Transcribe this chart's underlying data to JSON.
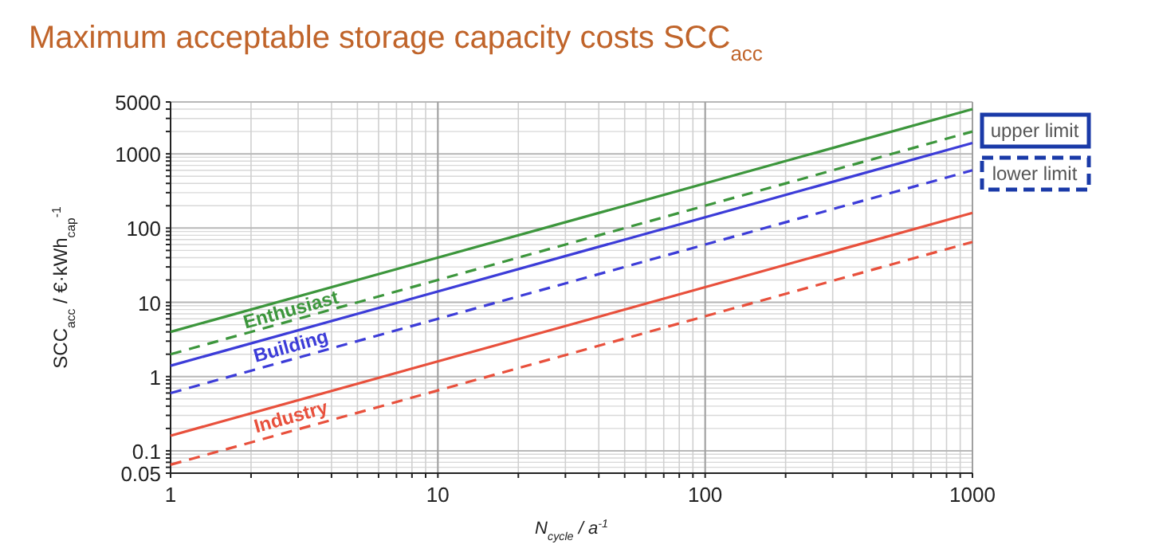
{
  "chart_data": {
    "type": "line",
    "title": "Maximum acceptable storage capacity costs SCC$_{acc}$",
    "xlabel": "N$_{cycle}$ / a$^{-1}$",
    "ylabel": "SCC$_{acc}$ / €·kWh$_{cap}$$^{-1}$",
    "x": [
      1,
      1000
    ],
    "log": "xy",
    "xlim": [
      1,
      1000
    ],
    "xticks": [
      1,
      10,
      100,
      1000
    ],
    "ylim": [
      0.05,
      5000
    ],
    "yticks": [
      0.05,
      0.1,
      1,
      10,
      100,
      1000,
      5000
    ],
    "grid": true,
    "annotations": [
      "upper limit",
      "lower limit"
    ],
    "series": [
      {
        "name": "Enthusiast",
        "color": "#3c963c",
        "values": [
          4,
          4000
        ],
        "line_style": "solid"
      },
      {
        "color": "#3c963c",
        "values": [
          2,
          2000
        ],
        "line_style": "dashed"
      },
      {
        "name": "Building",
        "color": "#3c3cd8",
        "values": [
          1.4,
          1400
        ],
        "line_style": "solid"
      },
      {
        "color": "#3c3cd8",
        "values": [
          0.6,
          600
        ],
        "line_style": "dashed"
      },
      {
        "name": "Industry",
        "color": "#e8503c",
        "values": [
          0.16,
          160
        ],
        "line_style": "solid"
      },
      {
        "color": "#e8503c",
        "values": [
          0.065,
          65
        ],
        "line_style": "dashed"
      }
    ]
  }
}
